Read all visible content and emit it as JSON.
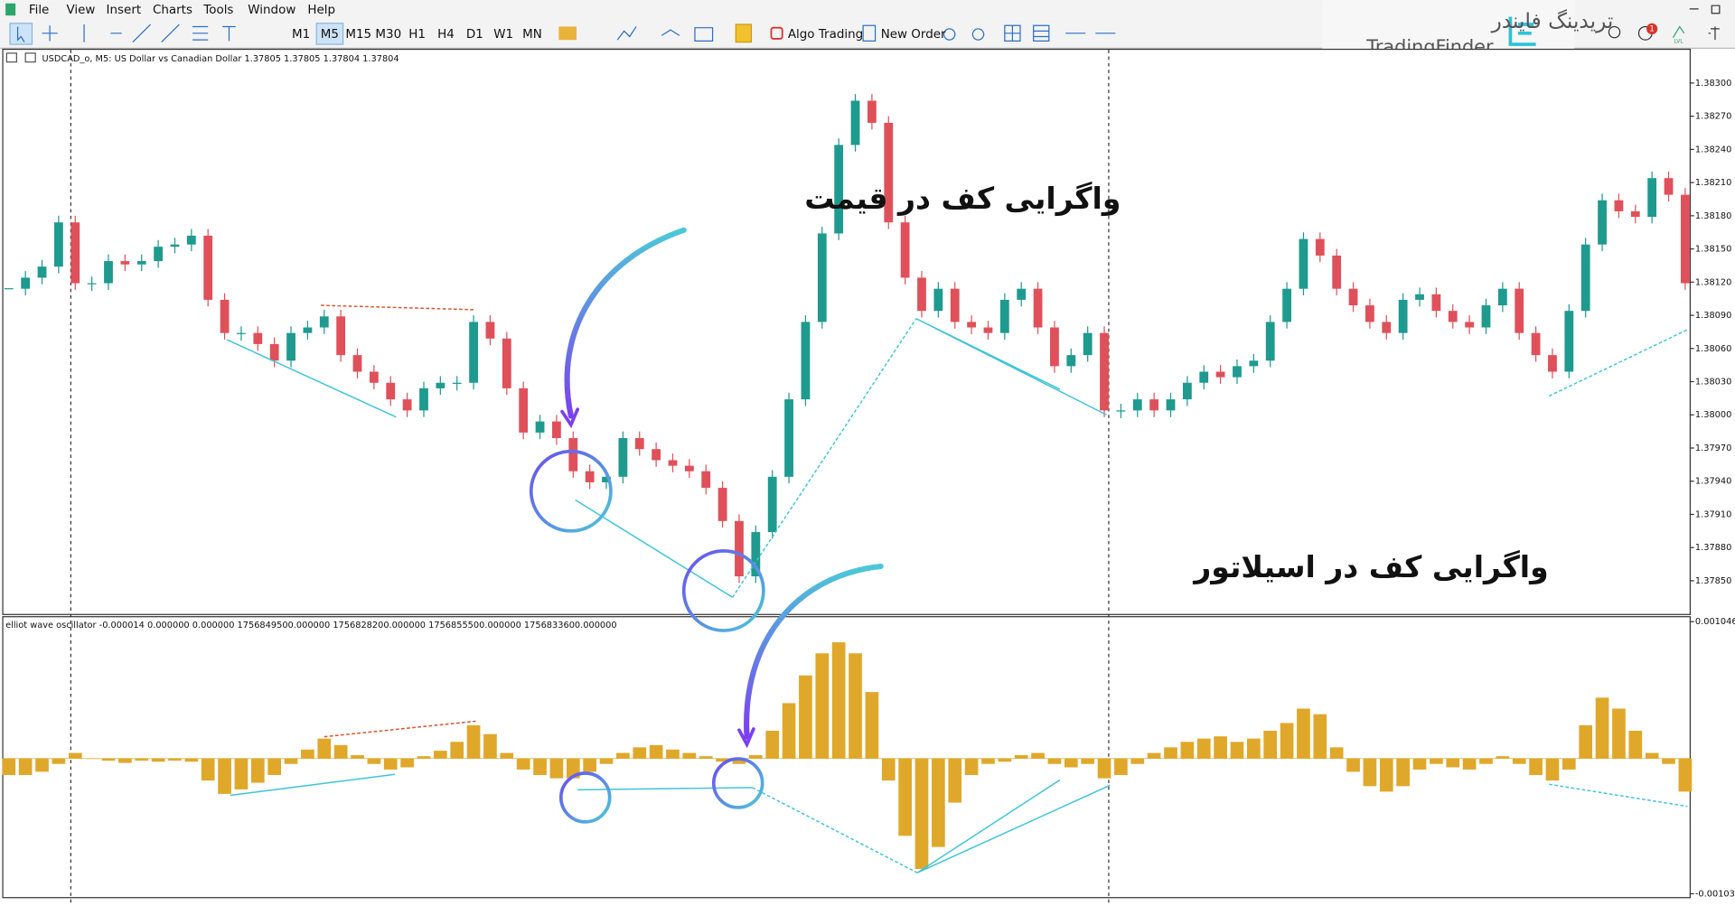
{
  "menu": [
    "File",
    "View",
    "Insert",
    "Charts",
    "Tools",
    "Window",
    "Help"
  ],
  "toolbar": {
    "timeframes": [
      "M1",
      "M5",
      "M15",
      "M30",
      "H1",
      "H4",
      "D1",
      "W1",
      "MN"
    ],
    "algo_trading": "Algo Trading",
    "new_order": "New Order"
  },
  "logo": {
    "persian": "تریدینگ فایندر",
    "latin": "TradingFinder"
  },
  "notification_count": 1,
  "level_label": "LVL",
  "annotations": [
    "واگرایی کف در قیمت",
    "واگرایی کف در اسیلاتور"
  ],
  "chart_data": [
    {
      "type": "candlestick",
      "title": "USDCAD_o, M5:  US Dollar vs Canadian Dollar  1.37805 1.37805 1.37804 1.37804",
      "up_color": "#1e9a8f",
      "down_color": "#e0505a",
      "values": [
        1.38114,
        1.38124,
        1.38134,
        1.38174,
        1.38119,
        1.38119,
        1.38139,
        1.38136,
        1.38139,
        1.38152,
        1.38154,
        1.38162,
        1.38104,
        1.38074,
        1.38074,
        1.38064,
        1.38049,
        1.38074,
        1.38079,
        1.38089,
        1.38054,
        1.38039,
        1.38029,
        1.38014,
        1.38004,
        1.38024,
        1.38029,
        1.38029,
        1.38084,
        1.38069,
        1.38024,
        1.37984,
        1.37994,
        1.37979,
        1.37949,
        1.37939,
        1.37944,
        1.37979,
        1.37969,
        1.37959,
        1.37954,
        1.37949,
        1.37934,
        1.37904,
        1.37854,
        1.37894,
        1.37944,
        1.38014,
        1.38084,
        1.38164,
        1.38244,
        1.38284,
        1.38264,
        1.38174,
        1.38124,
        1.38094,
        1.38114,
        1.38084,
        1.38079,
        1.38074,
        1.38104,
        1.38114,
        1.38079,
        1.38044,
        1.38054,
        1.38074,
        1.38004,
        1.38004,
        1.38014,
        1.38004,
        1.38014,
        1.38029,
        1.38039,
        1.38034,
        1.38044,
        1.38049,
        1.38084,
        1.38114,
        1.38159,
        1.38144,
        1.38114,
        1.38099,
        1.38084,
        1.38074,
        1.38104,
        1.38109,
        1.38094,
        1.38084,
        1.38079,
        1.38099,
        1.38114,
        1.38074,
        1.38054,
        1.38039,
        1.38094,
        1.38154,
        1.38194,
        1.38184,
        1.38179,
        1.38214,
        1.38199,
        1.38119
      ],
      "ylim": [
        1.3782,
        1.3833
      ],
      "yticks": [
        {
          "value": 1.383,
          "label": "1.38300"
        },
        {
          "value": 1.3827,
          "label": "1.38270"
        },
        {
          "value": 1.3824,
          "label": "1.38240"
        },
        {
          "value": 1.3821,
          "label": "1.38210"
        },
        {
          "value": 1.3818,
          "label": "1.38180"
        },
        {
          "value": 1.3815,
          "label": "1.38150"
        },
        {
          "value": 1.3812,
          "label": "1.38120"
        },
        {
          "value": 1.3809,
          "label": "1.38090"
        },
        {
          "value": 1.3806,
          "label": "1.38060"
        },
        {
          "value": 1.3803,
          "label": "1.38030"
        },
        {
          "value": 1.38,
          "label": "1.38000"
        },
        {
          "value": 1.3797,
          "label": "1.37970"
        },
        {
          "value": 1.3794,
          "label": "1.37940"
        },
        {
          "value": 1.3791,
          "label": "1.37910"
        },
        {
          "value": 1.3788,
          "label": "1.37880"
        },
        {
          "value": 1.3785,
          "label": "1.37850"
        }
      ]
    },
    {
      "type": "bar",
      "title": "elliot wave oscillator -0.000014 0.000000 0.000000 1756849500.000000 1756828200.000000 1756855500.000000 1756833600.000000",
      "color": "#e0a82a",
      "values": [
        -0.000127,
        -0.000127,
        -0.000102,
        -4.2e-05,
        4.2e-05,
        0,
        -1.7e-05,
        -3.4e-05,
        -1.7e-05,
        -2.5e-05,
        -1.7e-05,
        -2.5e-05,
        -0.000169,
        -0.000271,
        -0.000237,
        -0.000186,
        -0.000127,
        -4.2e-05,
        6.8e-05,
        0.000152,
        0.000102,
        2.5e-05,
        -4.2e-05,
        -8.5e-05,
        -6.8e-05,
        1.7e-05,
        5.9e-05,
        0.000127,
        0.000254,
        0.000186,
        4.2e-05,
        -8.5e-05,
        -0.000127,
        -0.000152,
        -0.000152,
        -0.000102,
        -4.2e-05,
        4.2e-05,
        8.5e-05,
        0.000102,
        6.8e-05,
        4.2e-05,
        1.7e-05,
        -2.5e-05,
        -4.2e-05,
        2.5e-05,
        0.000212,
        0.000423,
        0.000635,
        0.000804,
        0.000888,
        0.000804,
        0.000508,
        -0.000169,
        -0.000592,
        -0.000846,
        -0.000677,
        -0.000338,
        -0.000127,
        -4.2e-05,
        -2.5e-05,
        2.5e-05,
        4.2e-05,
        -4.2e-05,
        -6.8e-05,
        -4.2e-05,
        -0.000152,
        -0.000127,
        -4.2e-05,
        4.2e-05,
        8.5e-05,
        0.000127,
        0.000152,
        0.000169,
        0.000127,
        0.000152,
        0.000212,
        0.000271,
        0.000381,
        0.000338,
        8.5e-05,
        -0.000102,
        -0.000212,
        -0.000254,
        -0.000212,
        -8.5e-05,
        -4.2e-05,
        -6.8e-05,
        -8.5e-05,
        -4.2e-05,
        1.7e-05,
        -4.2e-05,
        -0.000127,
        -0.000169,
        -8.5e-05,
        0.000254,
        0.000465,
        0.000381,
        0.000212,
        4.2e-05,
        -4.2e-05,
        -0.000254
      ],
      "ylim": [
        -0.001035,
        0.001046
      ],
      "yticks": [
        0.001046,
        -0.001035
      ]
    }
  ]
}
